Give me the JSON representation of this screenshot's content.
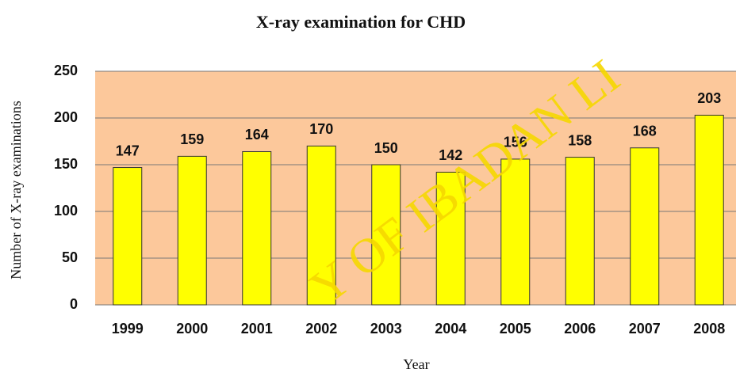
{
  "chart_data": {
    "type": "bar",
    "title": "X-ray examination for CHD",
    "xlabel": "Year",
    "ylabel": "Number of X-ray examinations",
    "categories": [
      "1999",
      "2000",
      "2001",
      "2002",
      "2003",
      "2004",
      "2005",
      "2006",
      "2007",
      "2008"
    ],
    "values": [
      147,
      159,
      164,
      170,
      150,
      142,
      156,
      158,
      168,
      203
    ],
    "color": "#ffff00",
    "background": "#fcc89b",
    "ylim": [
      0,
      250
    ],
    "yticks": [
      0,
      50,
      100,
      150,
      200,
      250
    ],
    "grid": true,
    "watermark": "Y OF IBADAN LI"
  }
}
